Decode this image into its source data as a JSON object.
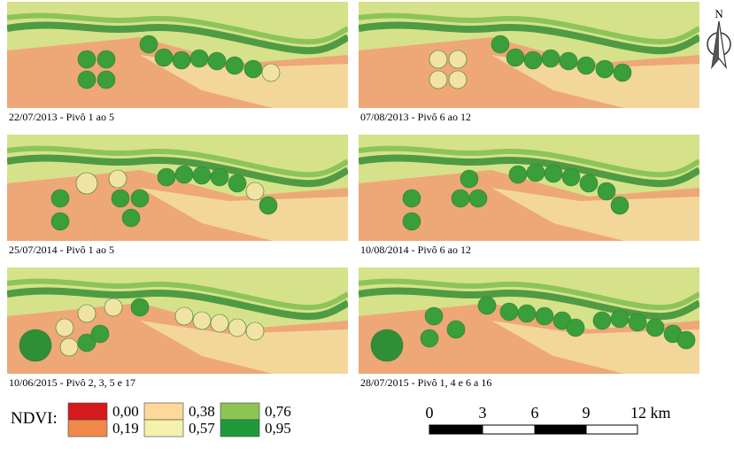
{
  "north": "N",
  "panels": [
    {
      "caption": "22/07/2013 - Pivô 1 ao 5"
    },
    {
      "caption": "07/08/2013 - Pivô 6 ao 12"
    },
    {
      "caption": "25/07/2014 - Pivô 1 ao 5"
    },
    {
      "caption": "10/08/2014 - Pivô 6 ao 12"
    },
    {
      "caption": "10/06/2015 - Pivô 2, 3, 5 e 17"
    },
    {
      "caption": "28/07/2015 - Pivô 1, 4 e 6 a 16"
    }
  ],
  "legend": {
    "title": "NDVI:",
    "classes": [
      {
        "label": "0,00",
        "color": "#d7191c"
      },
      {
        "label": "0,19",
        "color": "#f0894b"
      },
      {
        "label": "0,38",
        "color": "#fdd89a"
      },
      {
        "label": "0,57",
        "color": "#f4f1ad"
      },
      {
        "label": "0,76",
        "color": "#8cc553"
      },
      {
        "label": "0,95",
        "color": "#1f9a3b"
      }
    ]
  },
  "scale_bar": {
    "labels": [
      "0",
      "3",
      "6",
      "9",
      "12 km"
    ]
  }
}
